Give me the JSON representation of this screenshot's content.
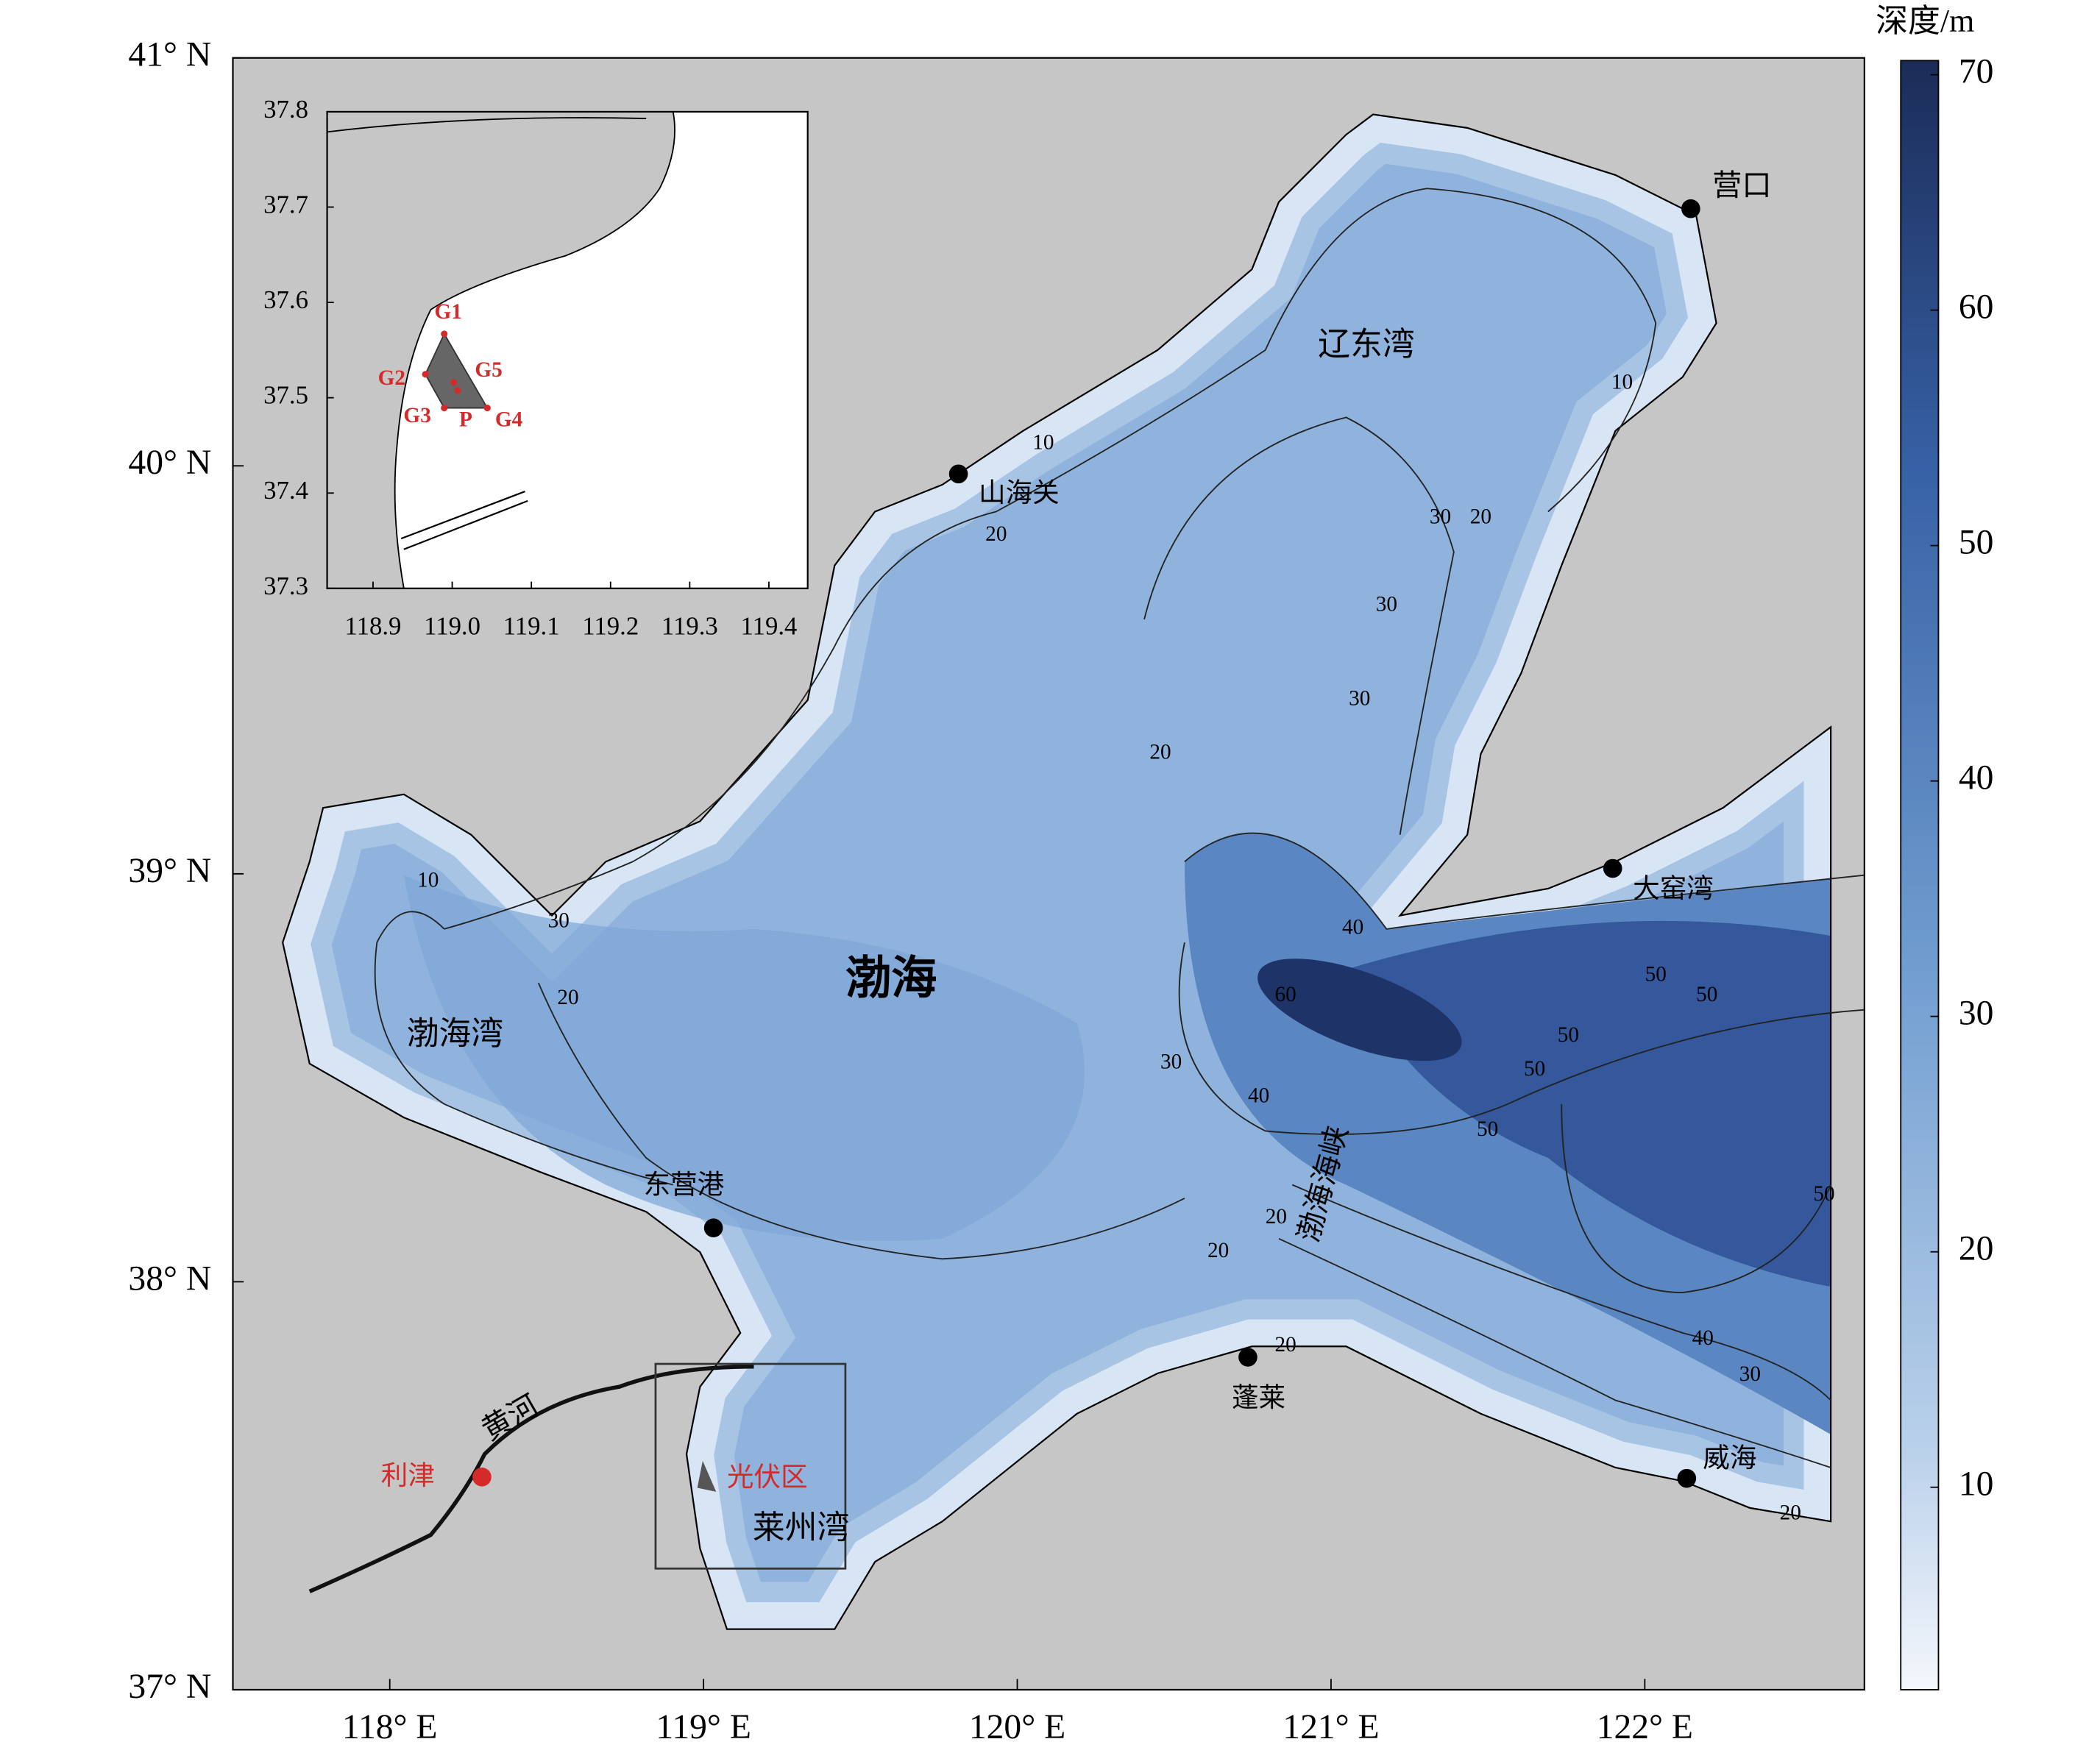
{
  "map": {
    "xlim": [
      117.5,
      122.7
    ],
    "ylim": [
      37,
      41
    ],
    "lon_ticks": [
      {
        "value": 118,
        "label": "118° E"
      },
      {
        "value": 119,
        "label": "119° E"
      },
      {
        "value": 120,
        "label": "120° E"
      },
      {
        "value": 121,
        "label": "121° E"
      },
      {
        "value": 122,
        "label": "122° E"
      }
    ],
    "lat_ticks": [
      {
        "value": 37,
        "label": "37° N"
      },
      {
        "value": 38,
        "label": "38° N"
      },
      {
        "value": 39,
        "label": "39° N"
      },
      {
        "value": 40,
        "label": "40° N"
      },
      {
        "value": 41,
        "label": "41° N"
      }
    ],
    "colorbar": {
      "title": "深度/m",
      "range": [
        1.4,
        70.6
      ],
      "ticks": [
        10,
        20,
        30,
        40,
        50,
        60,
        70
      ]
    },
    "places": [
      "营口",
      "辽东湾",
      "山海关",
      "渤海",
      "大窑湾",
      "渤海湾",
      "东营港",
      "渤海海峡",
      "蓬莱",
      "威海",
      "黄河",
      "利津",
      "光伏区",
      "莱州湾"
    ],
    "contour_labels": [
      10,
      20,
      30,
      10,
      20,
      10,
      20,
      30,
      30,
      30,
      20,
      40,
      60,
      30,
      40,
      50,
      50,
      50,
      50,
      50,
      50,
      20,
      20,
      20,
      40,
      30,
      20
    ],
    "inset": {
      "xlim": [
        118.842,
        119.449
      ],
      "ylim": [
        37.3,
        37.8
      ],
      "xticks": [
        118.9,
        {
          "value": 119,
          "label": "119.0"
        },
        119.1,
        119.2,
        119.3,
        119.4
      ],
      "yticks": [
        37.3,
        37.4,
        37.5,
        37.6,
        37.7,
        37.8
      ],
      "site_labels": [
        "G1",
        "G2",
        "G5",
        "G3",
        "P",
        "G4"
      ]
    }
  }
}
